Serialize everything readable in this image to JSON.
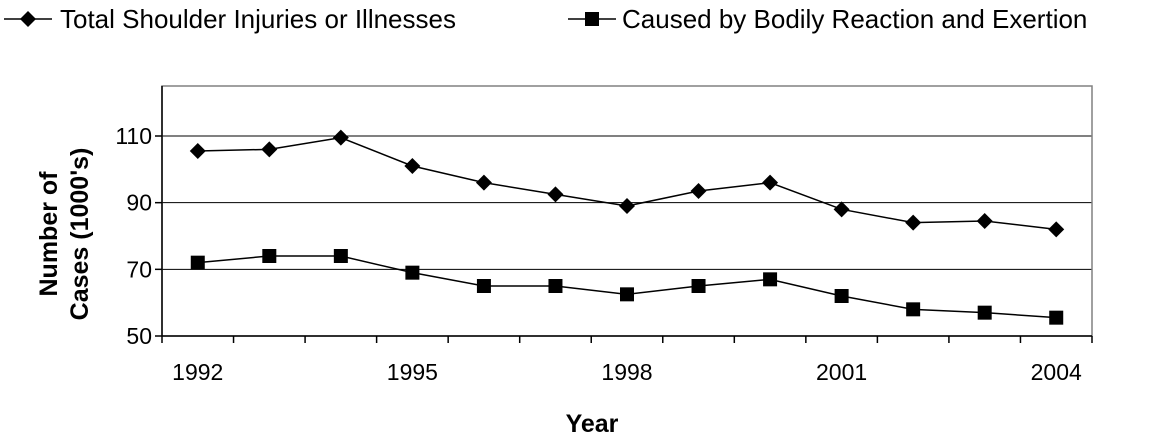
{
  "chart_data": {
    "type": "line",
    "title": "",
    "xlabel": "Year",
    "ylabel_lines": [
      "Number of",
      "Cases (1000's)"
    ],
    "x": [
      1992,
      1993,
      1994,
      1995,
      1996,
      1997,
      1998,
      1999,
      2000,
      2001,
      2002,
      2003,
      2004
    ],
    "x_tick_labels": [
      "1992",
      "1995",
      "1998",
      "2001",
      "2004"
    ],
    "y_tick_labels": [
      "50",
      "70",
      "90",
      "110"
    ],
    "ylim": [
      50,
      125
    ],
    "yticks": [
      50,
      70,
      90,
      110
    ],
    "grid": "horizontal",
    "legend_position": "top",
    "series": [
      {
        "name": "Total Shoulder Injuries or Illnesses",
        "marker": "diamond",
        "color": "#000000",
        "values": [
          105.5,
          106,
          109.5,
          101,
          96,
          92.5,
          89,
          93.5,
          96,
          88,
          84,
          84.5,
          82
        ]
      },
      {
        "name": "Caused by Bodily Reaction and Exertion",
        "marker": "square",
        "color": "#000000",
        "values": [
          72,
          74,
          74,
          69,
          65,
          65,
          62.5,
          65,
          67,
          62,
          58,
          57,
          55.5
        ]
      }
    ]
  }
}
